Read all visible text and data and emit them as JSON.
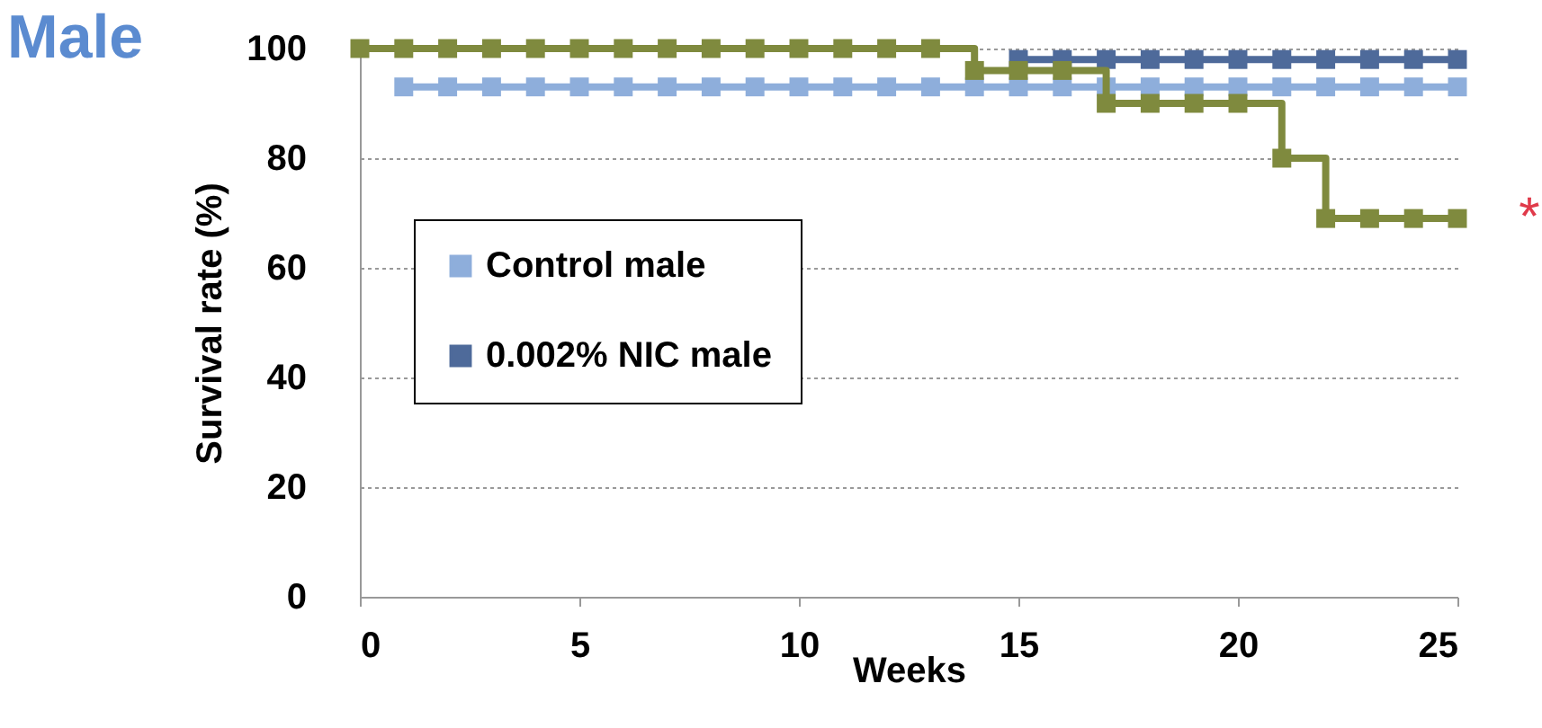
{
  "chart_data": {
    "type": "step",
    "title": "Male",
    "xlabel": "Weeks",
    "ylabel": "Survival rate (%)",
    "x": [
      0,
      1,
      2,
      3,
      4,
      5,
      6,
      7,
      8,
      9,
      10,
      11,
      12,
      13,
      14,
      15,
      16,
      17,
      18,
      19,
      20,
      21,
      22,
      23,
      24,
      25
    ],
    "series": [
      {
        "name": "Control male",
        "color": "#8eaedb",
        "values": [
          null,
          93,
          93,
          93,
          93,
          93,
          93,
          93,
          93,
          93,
          93,
          93,
          93,
          93,
          93,
          93,
          93,
          93,
          93,
          93,
          93,
          93,
          93,
          93,
          93,
          93
        ]
      },
      {
        "name": "0.002% NIC male",
        "color": "#4e6a9a",
        "values": [
          null,
          null,
          null,
          null,
          null,
          null,
          null,
          null,
          null,
          null,
          null,
          null,
          null,
          null,
          null,
          98,
          98,
          98,
          98,
          98,
          98,
          98,
          98,
          98,
          98,
          98
        ]
      },
      {
        "color": "#7f8a3e",
        "values": [
          100,
          100,
          100,
          100,
          100,
          100,
          100,
          100,
          100,
          100,
          100,
          100,
          100,
          100,
          96,
          96,
          96,
          90,
          90,
          90,
          90,
          80,
          69,
          69,
          69,
          69
        ]
      }
    ],
    "xlim": [
      0,
      25
    ],
    "xticks": [
      0,
      5,
      10,
      15,
      20,
      25
    ],
    "ylim": [
      0,
      100
    ],
    "yticks": [
      0,
      20,
      40,
      60,
      80,
      100
    ],
    "grid": "y",
    "legend": "left",
    "marker": "square",
    "line_style": "solid",
    "annotations": [
      {
        "text": "*",
        "x": 25,
        "y": 69
      }
    ]
  }
}
